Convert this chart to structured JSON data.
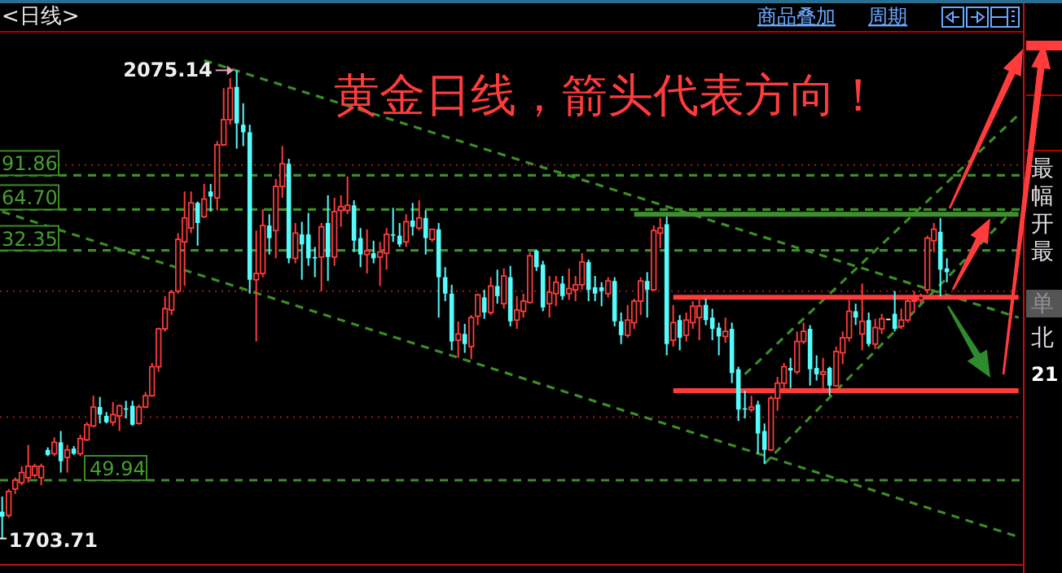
{
  "chart_data": {
    "type": "candlestick",
    "title": "黄金日线，箭头代表方向！",
    "categories": [
      null,
      null,
      null,
      null,
      null,
      null,
      null,
      null,
      null,
      null,
      null,
      null,
      null,
      null,
      null,
      null,
      null,
      null,
      null,
      null,
      null,
      null,
      null,
      null,
      null,
      null,
      null,
      null,
      null,
      null,
      null,
      null,
      null,
      null,
      null,
      null,
      null,
      null,
      null,
      null,
      null,
      null,
      null,
      null,
      null,
      null,
      null,
      null,
      null,
      null,
      null,
      null,
      null,
      null,
      null,
      null,
      null,
      null,
      null,
      null,
      null,
      null,
      null,
      null,
      null,
      null,
      null,
      null,
      null,
      null,
      null,
      null,
      null,
      null,
      null,
      null,
      null,
      null,
      null,
      null,
      null,
      null,
      null,
      null,
      null,
      null,
      null,
      null,
      null,
      null,
      null,
      null,
      null,
      null,
      null,
      null,
      null,
      null,
      null,
      null,
      null,
      null,
      null,
      null,
      null,
      null,
      null,
      null,
      null,
      null,
      null,
      null,
      null,
      null,
      null,
      null,
      null,
      null,
      null,
      null,
      null,
      null,
      null,
      null,
      null,
      null,
      null,
      null,
      null,
      null,
      null,
      null,
      null,
      null,
      null,
      null,
      null,
      null,
      null,
      null,
      null,
      null,
      null,
      null,
      null,
      null,
      null,
      null,
      null,
      null,
      null,
      null,
      null,
      null,
      null,
      null,
      null
    ],
    "ohlc": [
      [
        1725,
        1737,
        1703.71,
        1721
      ],
      [
        1722,
        1743,
        1720,
        1741
      ],
      [
        1743,
        1752,
        1739,
        1750
      ],
      [
        1748,
        1761,
        1746,
        1756
      ],
      [
        1752,
        1778,
        1748,
        1761
      ],
      [
        1754,
        1763,
        1752,
        1761
      ],
      [
        1752,
        1763,
        1746,
        1761
      ],
      [
        1774,
        1776,
        1769,
        1770
      ],
      [
        1771,
        1784,
        1769,
        1780
      ],
      [
        1780,
        1789,
        1756,
        1765
      ],
      [
        1768,
        1778,
        1756,
        1774
      ],
      [
        1775,
        1777,
        1770,
        1771
      ],
      [
        1771,
        1786,
        1769,
        1783
      ],
      [
        1782,
        1796,
        1781,
        1794
      ],
      [
        1793,
        1817,
        1792,
        1808
      ],
      [
        1808,
        1816,
        1795,
        1802
      ],
      [
        1801,
        1804,
        1795,
        1796
      ],
      [
        1796,
        1812,
        1793,
        1802
      ],
      [
        1801,
        1810,
        1789,
        1809
      ],
      [
        1807,
        1813,
        1799,
        1806
      ],
      [
        1809,
        1813,
        1793,
        1794
      ],
      [
        1795,
        1810,
        1794,
        1808
      ],
      [
        1808,
        1820,
        1807,
        1817
      ],
      [
        1817,
        1843,
        1816,
        1840
      ],
      [
        1840,
        1871,
        1836,
        1870
      ],
      [
        1870,
        1896,
        1868,
        1886
      ],
      [
        1885,
        1901,
        1881,
        1899
      ],
      [
        1900,
        1946,
        1898,
        1941
      ],
      [
        1939,
        1979,
        1904,
        1958
      ],
      [
        1950,
        1979,
        1946,
        1970
      ],
      [
        1970,
        1971,
        1936,
        1954
      ],
      [
        1959,
        1985,
        1958,
        1973
      ],
      [
        1979,
        1985,
        1963,
        1975
      ],
      [
        1974,
        2019,
        1964,
        2016
      ],
      [
        2016,
        2061,
        2015,
        2036
      ],
      [
        2036,
        2069,
        2032,
        2061
      ],
      [
        2062,
        2075.14,
        2013,
        2033
      ],
      [
        2032,
        2049,
        2015,
        2026
      ],
      [
        2026,
        2032,
        1898,
        1909
      ],
      [
        1909,
        1948,
        1860,
        1914
      ],
      [
        1914,
        1965,
        1911,
        1952
      ],
      [
        1952,
        1961,
        1929,
        1942
      ],
      [
        1948,
        1989,
        1926,
        1983
      ],
      [
        1983,
        2015,
        1974,
        2001
      ],
      [
        2001,
        2005,
        1922,
        1926
      ],
      [
        1926,
        1954,
        1922,
        1946
      ],
      [
        1945,
        1955,
        1909,
        1937
      ],
      [
        1945,
        1962,
        1920,
        1926
      ],
      [
        1927,
        1935,
        1911,
        1926
      ],
      [
        1927,
        1954,
        1900,
        1951
      ],
      [
        1954,
        1976,
        1908,
        1927
      ],
      [
        1927,
        1974,
        1920,
        1963
      ],
      [
        1964,
        1976,
        1951,
        1967
      ],
      [
        1964,
        1991,
        1961,
        1968
      ],
      [
        1968,
        1972,
        1931,
        1940
      ],
      [
        1942,
        1950,
        1919,
        1929
      ],
      [
        1929,
        1949,
        1914,
        1932
      ],
      [
        1930,
        1940,
        1922,
        1926
      ],
      [
        1927,
        1939,
        1904,
        1931
      ],
      [
        1930,
        1950,
        1917,
        1945
      ],
      [
        1945,
        1966,
        1939,
        1944
      ],
      [
        1944,
        1954,
        1935,
        1937
      ],
      [
        1939,
        1961,
        1935,
        1955
      ],
      [
        1956,
        1970,
        1944,
        1951
      ],
      [
        1950,
        1972,
        1948,
        1958
      ],
      [
        1958,
        1964,
        1929,
        1942
      ],
      [
        1941,
        1949,
        1939,
        1949
      ],
      [
        1949,
        1954,
        1879,
        1911
      ],
      [
        1911,
        1919,
        1892,
        1898
      ],
      [
        1898,
        1905,
        1853,
        1860
      ],
      [
        1861,
        1876,
        1847,
        1866
      ],
      [
        1866,
        1874,
        1851,
        1858
      ],
      [
        1856,
        1881,
        1846,
        1879
      ],
      [
        1880,
        1898,
        1873,
        1897
      ],
      [
        1895,
        1901,
        1878,
        1883
      ],
      [
        1883,
        1911,
        1881,
        1904
      ],
      [
        1904,
        1917,
        1890,
        1896
      ],
      [
        1890,
        1918,
        1886,
        1912
      ],
      [
        1911,
        1920,
        1872,
        1876
      ],
      [
        1877,
        1896,
        1870,
        1885
      ],
      [
        1884,
        1898,
        1879,
        1892
      ],
      [
        1891,
        1931,
        1890,
        1928
      ],
      [
        1932,
        1933,
        1916,
        1919
      ],
      [
        1921,
        1924,
        1884,
        1887
      ],
      [
        1890,
        1912,
        1879,
        1899
      ],
      [
        1898,
        1912,
        1888,
        1907
      ],
      [
        1906,
        1912,
        1893,
        1896
      ],
      [
        1898,
        1918,
        1893,
        1902
      ],
      [
        1901,
        1912,
        1892,
        1905
      ],
      [
        1905,
        1930,
        1901,
        1923
      ],
      [
        1923,
        1925,
        1892,
        1901
      ],
      [
        1903,
        1912,
        1892,
        1898
      ],
      [
        1903,
        1907,
        1888,
        1900
      ],
      [
        1898,
        1911,
        1895,
        1908
      ],
      [
        1908,
        1911,
        1872,
        1876
      ],
      [
        1876,
        1883,
        1858,
        1865
      ],
      [
        1865,
        1889,
        1863,
        1877
      ],
      [
        1875,
        1894,
        1870,
        1892
      ],
      [
        1892,
        1911,
        1881,
        1908
      ],
      [
        1908,
        1915,
        1879,
        1901
      ],
      [
        1901,
        1952,
        1900,
        1948
      ],
      [
        1946,
        1958,
        1934,
        1950
      ],
      [
        1953,
        1959,
        1849,
        1858
      ],
      [
        1861,
        1889,
        1856,
        1875
      ],
      [
        1877,
        1881,
        1853,
        1863
      ],
      [
        1865,
        1883,
        1860,
        1877
      ],
      [
        1875,
        1892,
        1870,
        1888
      ],
      [
        1879,
        1896,
        1861,
        1888
      ],
      [
        1889,
        1894,
        1873,
        1877
      ],
      [
        1879,
        1886,
        1861,
        1870
      ],
      [
        1871,
        1875,
        1849,
        1864
      ],
      [
        1864,
        1879,
        1859,
        1868
      ],
      [
        1870,
        1875,
        1827,
        1835
      ],
      [
        1838,
        1840,
        1797,
        1806
      ],
      [
        1807,
        1821,
        1799,
        1806
      ],
      [
        1806,
        1817,
        1804,
        1808
      ],
      [
        1810,
        1813,
        1771,
        1787
      ],
      [
        1789,
        1795,
        1763,
        1774
      ],
      [
        1774,
        1817,
        1773,
        1815
      ],
      [
        1815,
        1832,
        1805,
        1827
      ],
      [
        1827,
        1843,
        1823,
        1840
      ],
      [
        1839,
        1847,
        1823,
        1837
      ],
      [
        1836,
        1868,
        1834,
        1860
      ],
      [
        1860,
        1875,
        1858,
        1868
      ],
      [
        1870,
        1873,
        1825,
        1838
      ],
      [
        1839,
        1849,
        1829,
        1834
      ],
      [
        1834,
        1847,
        1823,
        1836
      ],
      [
        1839,
        1840,
        1817,
        1825
      ],
      [
        1825,
        1856,
        1824,
        1852
      ],
      [
        1851,
        1868,
        1842,
        1863
      ],
      [
        1863,
        1893,
        1860,
        1884
      ],
      [
        1884,
        1890,
        1873,
        1879
      ],
      [
        1866,
        1906,
        1853,
        1876
      ],
      [
        1877,
        1883,
        1856,
        1858
      ],
      [
        1858,
        1878,
        1854,
        1871
      ],
      [
        1870,
        1882,
        1866,
        1878
      ],
      [
        1878,
        1878,
        1877,
        1878
      ],
      [
        1882,
        1900,
        1868,
        1870
      ],
      [
        1872,
        1886,
        1870,
        1877
      ],
      [
        1877,
        1896,
        1875,
        1892
      ],
      [
        1892,
        1900,
        1883,
        1893
      ],
      [
        1893,
        1898,
        1890,
        1896
      ],
      [
        1901,
        1944,
        1898,
        1942
      ],
      [
        1940,
        1954,
        1931,
        1949
      ],
      [
        1947,
        1958,
        1896,
        1917
      ],
      [
        1918,
        1926,
        1907,
        1915
      ],
      null,
      null,
      null,
      null,
      null,
      null,
      null,
      null,
      null,
      null,
      null
    ],
    "series": [
      {
        "type": "line",
        "color": "#3c8c28",
        "line_style": "dashed",
        "values": [
          1963,
          null,
          null,
          null,
          null,
          null,
          null,
          null,
          null,
          null,
          null,
          null,
          null,
          null,
          null,
          null,
          null,
          null,
          null,
          null,
          null,
          null,
          null,
          null,
          null,
          null,
          null,
          null,
          null,
          null,
          null,
          null,
          null,
          null,
          null,
          null,
          null,
          null,
          null,
          null,
          null,
          null,
          null,
          null,
          null,
          null,
          null,
          null,
          null,
          null,
          null,
          null,
          null,
          null,
          null,
          null,
          null,
          null,
          null,
          null,
          null,
          null,
          null,
          null,
          null,
          null,
          null,
          null,
          null,
          null,
          null,
          null,
          null,
          null,
          null,
          null,
          null,
          null,
          null,
          null,
          null,
          null,
          null,
          null,
          null,
          null,
          null,
          null,
          null,
          null,
          null,
          null,
          null,
          null,
          null,
          null,
          null,
          null,
          null,
          null,
          null,
          null,
          null,
          null,
          null,
          null,
          null,
          null,
          null,
          null,
          null,
          null,
          null,
          null,
          null,
          null,
          null,
          null,
          null,
          null,
          null,
          null,
          null,
          null,
          null,
          null,
          null,
          null,
          null,
          null,
          null,
          null,
          null,
          null,
          null,
          null,
          null,
          null,
          null,
          null,
          null,
          null,
          null,
          null,
          null,
          null,
          null,
          null,
          null,
          null,
          null,
          null,
          null,
          null,
          null,
          null,
          1705
        ]
      },
      {
        "type": "line",
        "color": "#3c8c28",
        "line_style": "dashed",
        "values": [
          null,
          null,
          null,
          null,
          null,
          null,
          null,
          null,
          null,
          null,
          null,
          null,
          null,
          null,
          null,
          null,
          null,
          null,
          null,
          null,
          null,
          null,
          null,
          null,
          null,
          null,
          null,
          null,
          null,
          null,
          null,
          2083,
          null,
          null,
          null,
          null,
          null,
          null,
          null,
          null,
          null,
          null,
          null,
          null,
          null,
          null,
          null,
          null,
          null,
          null,
          null,
          null,
          null,
          null,
          null,
          null,
          null,
          null,
          null,
          null,
          null,
          null,
          null,
          null,
          null,
          null,
          null,
          null,
          null,
          null,
          null,
          null,
          null,
          null,
          null,
          null,
          null,
          null,
          null,
          null,
          null,
          null,
          null,
          null,
          null,
          null,
          null,
          null,
          null,
          null,
          null,
          null,
          null,
          null,
          null,
          null,
          null,
          null,
          null,
          null,
          null,
          null,
          null,
          null,
          null,
          null,
          null,
          null,
          null,
          null,
          null,
          null,
          null,
          null,
          null,
          null,
          null,
          null,
          null,
          null,
          null,
          null,
          null,
          null,
          null,
          null,
          null,
          null,
          null,
          null,
          null,
          null,
          null,
          null,
          null,
          null,
          null,
          null,
          null,
          null,
          null,
          null,
          null,
          null,
          null,
          null,
          null,
          null,
          null,
          null,
          null,
          null,
          null,
          null,
          null,
          null,
          1879
        ]
      },
      {
        "type": "line",
        "color": "#3c8c28",
        "line_style": "dashed",
        "values": [
          null,
          null,
          null,
          null,
          null,
          null,
          null,
          null,
          null,
          null,
          null,
          null,
          null,
          null,
          null,
          null,
          null,
          null,
          null,
          null,
          null,
          null,
          null,
          null,
          null,
          null,
          null,
          null,
          null,
          null,
          null,
          null,
          null,
          null,
          null,
          null,
          null,
          null,
          null,
          null,
          null,
          null,
          null,
          null,
          null,
          null,
          null,
          null,
          null,
          null,
          null,
          null,
          null,
          null,
          null,
          null,
          null,
          null,
          null,
          null,
          null,
          null,
          null,
          null,
          null,
          null,
          null,
          null,
          null,
          null,
          null,
          null,
          null,
          null,
          null,
          null,
          null,
          null,
          null,
          null,
          null,
          null,
          null,
          null,
          null,
          null,
          null,
          null,
          null,
          null,
          null,
          null,
          null,
          null,
          null,
          null,
          null,
          null,
          null,
          null,
          null,
          null,
          null,
          null,
          null,
          null,
          null,
          null,
          null,
          null,
          null,
          null,
          null,
          null,
          null,
          null,
          null,
          1763,
          null,
          null,
          null,
          null,
          null,
          null,
          null,
          null,
          null,
          null,
          null,
          null,
          null,
          null,
          null,
          null,
          null,
          null,
          null,
          null,
          null,
          null,
          null,
          null,
          null,
          null,
          null,
          null,
          null,
          null,
          null,
          null,
          null,
          null,
          null,
          null,
          null,
          1963,
          null
        ]
      },
      {
        "type": "line",
        "color": "#3c8c28",
        "line_style": "dashed",
        "values": [
          null,
          null,
          null,
          null,
          null,
          null,
          null,
          null,
          null,
          null,
          null,
          null,
          null,
          null,
          null,
          null,
          null,
          null,
          null,
          null,
          null,
          null,
          null,
          null,
          null,
          null,
          null,
          null,
          null,
          null,
          null,
          null,
          null,
          null,
          null,
          null,
          null,
          null,
          null,
          null,
          null,
          null,
          null,
          null,
          null,
          null,
          null,
          null,
          null,
          null,
          null,
          null,
          null,
          null,
          null,
          null,
          null,
          null,
          null,
          null,
          null,
          null,
          null,
          null,
          null,
          null,
          null,
          null,
          null,
          null,
          null,
          null,
          null,
          null,
          null,
          null,
          null,
          null,
          null,
          null,
          null,
          null,
          null,
          null,
          null,
          null,
          null,
          null,
          null,
          null,
          null,
          null,
          null,
          null,
          null,
          null,
          null,
          null,
          null,
          null,
          null,
          null,
          null,
          null,
          null,
          null,
          null,
          null,
          null,
          null,
          null,
          null,
          null,
          null,
          1834,
          null,
          null,
          null,
          null,
          null,
          null,
          null,
          null,
          null,
          null,
          null,
          null,
          null,
          null,
          null,
          null,
          null,
          null,
          null,
          null,
          null,
          null,
          null,
          null,
          null,
          null,
          null,
          null,
          null,
          null,
          null,
          null,
          null,
          null,
          null,
          null,
          null,
          null,
          null,
          null,
          null,
          2040
        ]
      },
      {
        "type": "line",
        "color": "#3f8f2f",
        "line_style": "solid",
        "values": [
          null,
          null,
          null,
          null,
          null,
          null,
          null,
          null,
          null,
          null,
          null,
          null,
          null,
          null,
          null,
          null,
          null,
          null,
          null,
          null,
          null,
          null,
          null,
          null,
          null,
          null,
          null,
          null,
          null,
          null,
          null,
          null,
          null,
          null,
          null,
          null,
          null,
          null,
          null,
          null,
          null,
          null,
          null,
          null,
          null,
          null,
          null,
          null,
          null,
          null,
          null,
          null,
          null,
          null,
          null,
          null,
          null,
          null,
          null,
          null,
          null,
          null,
          null,
          null,
          null,
          null,
          null,
          null,
          null,
          null,
          null,
          null,
          null,
          null,
          null,
          null,
          null,
          null,
          null,
          null,
          null,
          null,
          null,
          null,
          null,
          null,
          null,
          null,
          null,
          null,
          null,
          null,
          null,
          null,
          null,
          null,
          null,
          1961,
          null,
          null,
          null,
          null,
          null,
          null,
          null,
          null,
          null,
          null,
          null,
          null,
          null,
          null,
          null,
          null,
          null,
          null,
          null,
          null,
          null,
          null,
          null,
          null,
          null,
          null,
          null,
          null,
          null,
          null,
          null,
          null,
          null,
          null,
          null,
          null,
          null,
          null,
          null,
          null,
          null,
          null,
          null,
          null,
          null,
          null,
          null,
          null,
          null,
          null,
          null,
          null,
          null,
          null,
          null,
          null,
          null,
          null,
          1961
        ]
      },
      {
        "type": "line",
        "color": "#ff3b3b",
        "line_style": "solid",
        "values": [
          null,
          null,
          null,
          null,
          null,
          null,
          null,
          null,
          null,
          null,
          null,
          null,
          null,
          null,
          null,
          null,
          null,
          null,
          null,
          null,
          null,
          null,
          null,
          null,
          null,
          null,
          null,
          null,
          null,
          null,
          null,
          null,
          null,
          null,
          null,
          null,
          null,
          null,
          null,
          null,
          null,
          null,
          null,
          null,
          null,
          null,
          null,
          null,
          null,
          null,
          null,
          null,
          null,
          null,
          null,
          null,
          null,
          null,
          null,
          null,
          null,
          null,
          null,
          null,
          null,
          null,
          null,
          null,
          null,
          null,
          null,
          null,
          null,
          null,
          null,
          null,
          null,
          null,
          null,
          null,
          null,
          null,
          null,
          null,
          null,
          null,
          null,
          null,
          null,
          null,
          null,
          null,
          null,
          null,
          null,
          null,
          null,
          null,
          null,
          null,
          null,
          null,
          null,
          1895,
          null,
          null,
          null,
          null,
          null,
          null,
          null,
          null,
          null,
          null,
          null,
          null,
          null,
          null,
          null,
          null,
          null,
          null,
          null,
          null,
          null,
          null,
          null,
          null,
          null,
          null,
          null,
          null,
          null,
          null,
          null,
          null,
          null,
          null,
          null,
          null,
          null,
          null,
          null,
          null,
          null,
          null,
          null,
          null,
          null,
          null,
          null,
          null,
          null,
          null,
          null,
          null,
          1895
        ]
      },
      {
        "type": "line",
        "color": "#ff3b3b",
        "line_style": "solid",
        "values": [
          null,
          null,
          null,
          null,
          null,
          null,
          null,
          null,
          null,
          null,
          null,
          null,
          null,
          null,
          null,
          null,
          null,
          null,
          null,
          null,
          null,
          null,
          null,
          null,
          null,
          null,
          null,
          null,
          null,
          null,
          null,
          null,
          null,
          null,
          null,
          null,
          null,
          null,
          null,
          null,
          null,
          null,
          null,
          null,
          null,
          null,
          null,
          null,
          null,
          null,
          null,
          null,
          null,
          null,
          null,
          null,
          null,
          null,
          null,
          null,
          null,
          null,
          null,
          null,
          null,
          null,
          null,
          null,
          null,
          null,
          null,
          null,
          null,
          null,
          null,
          null,
          null,
          null,
          null,
          null,
          null,
          null,
          null,
          null,
          null,
          null,
          null,
          null,
          null,
          null,
          null,
          null,
          null,
          null,
          null,
          null,
          null,
          null,
          null,
          null,
          null,
          null,
          null,
          1821,
          null,
          null,
          null,
          null,
          null,
          null,
          null,
          null,
          null,
          null,
          null,
          null,
          null,
          null,
          null,
          null,
          null,
          null,
          null,
          null,
          null,
          null,
          null,
          null,
          null,
          null,
          null,
          null,
          null,
          null,
          null,
          null,
          null,
          null,
          null,
          null,
          null,
          null,
          null,
          null,
          null,
          null,
          null,
          null,
          null,
          null,
          null,
          null,
          null,
          null,
          null,
          null,
          1821
        ]
      }
    ],
    "ylim": [
      1682.8,
      2105.1
    ],
    "yticks": [
      {
        "value": 1800,
        "label": null
      },
      {
        "value": 1900,
        "label": null
      },
      {
        "value": 2000,
        "label": null
      }
    ],
    "grid": "y",
    "ref_lines": [
      {
        "axis": "y",
        "value": 1991.86,
        "color": "#3c8c28",
        "line_style": "dashed"
      },
      {
        "axis": "y",
        "value": 1964.7,
        "color": "#3c8c28",
        "line_style": "dashed"
      },
      {
        "axis": "y",
        "value": 1932.35,
        "color": "#3c8c28",
        "line_style": "dashed"
      },
      {
        "axis": "y",
        "value": 1749.94,
        "color": "#3c8c28",
        "line_style": "dashed"
      }
    ],
    "annotations": [
      "<日线>",
      "商品叠加",
      "周期",
      "最",
      "幅",
      "开",
      "最",
      "单",
      "北",
      "21",
      "91.86",
      "64.70",
      "32.35",
      "49.94",
      "2075.14",
      "1703.71"
    ]
  }
}
